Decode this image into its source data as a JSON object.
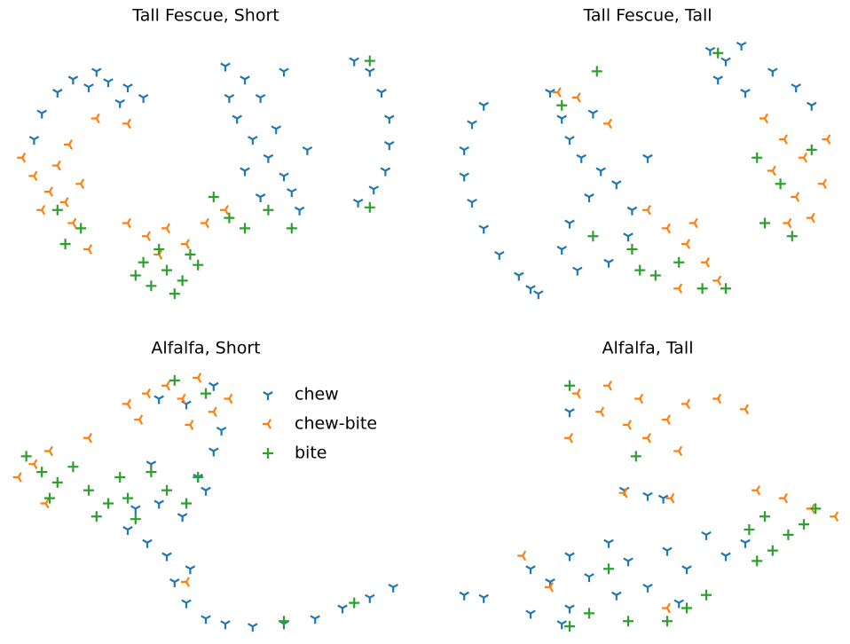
{
  "chart_data": [
    {
      "type": "scatter",
      "title": "Tall Fescue, Short",
      "xlim": [
        0,
        100
      ],
      "ylim": [
        0,
        100
      ],
      "series": [
        {
          "name": "chew",
          "color": "#1f77b4",
          "marker": "tri_down",
          "x": [
            8,
            12,
            16,
            20,
            25,
            30,
            34,
            22,
            6,
            28,
            55,
            60,
            64,
            58,
            62,
            66,
            70,
            72,
            68,
            60,
            64,
            74,
            56,
            70,
            76,
            88,
            92,
            95,
            97,
            97,
            96,
            93,
            89
          ],
          "values": [
            72,
            80,
            85,
            82,
            84,
            82,
            78,
            88,
            62,
            76,
            90,
            85,
            78,
            70,
            62,
            55,
            48,
            42,
            66,
            50,
            40,
            35,
            78,
            88,
            58,
            92,
            88,
            80,
            70,
            60,
            50,
            43,
            38
          ]
        },
        {
          "name": "chew-bite",
          "color": "#ff7f0e",
          "marker": "tri_left",
          "x": [
            3,
            6,
            10,
            14,
            16,
            12,
            18,
            15,
            20,
            8,
            30,
            35,
            40,
            45,
            50,
            38,
            55,
            22,
            30
          ],
          "values": [
            55,
            48,
            42,
            38,
            30,
            52,
            45,
            60,
            20,
            35,
            30,
            25,
            28,
            22,
            30,
            18,
            35,
            70,
            68
          ]
        },
        {
          "name": "bite",
          "color": "#2ca02c",
          "marker": "plus",
          "x": [
            32,
            36,
            40,
            44,
            48,
            38,
            42,
            46,
            34,
            52,
            56,
            66,
            72,
            60,
            92,
            92,
            14,
            18,
            12
          ],
          "values": [
            10,
            6,
            12,
            8,
            14,
            20,
            3,
            18,
            15,
            40,
            32,
            35,
            28,
            28,
            92,
            36,
            22,
            28,
            35
          ]
        }
      ]
    },
    {
      "type": "scatter",
      "title": "Tall Fescue, Tall",
      "xlim": [
        0,
        100
      ],
      "ylim": [
        0,
        100
      ],
      "series": [
        {
          "name": "chew",
          "color": "#1f77b4",
          "marker": "tri_down",
          "x": [
            8,
            5,
            3,
            3,
            5,
            8,
            12,
            17,
            20,
            22,
            25,
            28,
            30,
            33,
            38,
            42,
            35,
            30,
            28,
            32,
            40,
            45,
            50,
            46,
            36,
            66,
            70,
            68,
            75,
            82,
            88,
            92,
            74
          ],
          "values": [
            75,
            68,
            58,
            48,
            38,
            28,
            18,
            10,
            5,
            3,
            80,
            70,
            62,
            55,
            50,
            45,
            40,
            30,
            20,
            12,
            15,
            25,
            55,
            35,
            72,
            96,
            92,
            85,
            80,
            88,
            82,
            75,
            98
          ]
        },
        {
          "name": "chew-bite",
          "color": "#ff7f0e",
          "marker": "tri_left",
          "x": [
            80,
            85,
            90,
            95,
            88,
            82,
            92,
            86,
            96,
            50,
            55,
            60,
            65,
            68,
            58,
            62,
            27,
            32,
            40
          ],
          "values": [
            70,
            62,
            55,
            45,
            40,
            50,
            32,
            30,
            62,
            35,
            28,
            22,
            15,
            8,
            5,
            30,
            80,
            78,
            68
          ]
        },
        {
          "name": "bite",
          "color": "#2ca02c",
          "marker": "plus",
          "x": [
            78,
            84,
            92,
            80,
            87,
            46,
            52,
            58,
            64,
            48,
            70,
            68,
            37,
            28,
            36
          ],
          "values": [
            55,
            45,
            58,
            30,
            25,
            20,
            10,
            15,
            5,
            12,
            5,
            95,
            88,
            75,
            25
          ]
        }
      ]
    },
    {
      "type": "scatter",
      "title": "Alfalfa, Short",
      "xlim": [
        0,
        100
      ],
      "ylim": [
        0,
        100
      ],
      "legend": "upper right",
      "series": [
        {
          "name": "chew",
          "color": "#1f77b4",
          "marker": "tri_down",
          "x": [
            45,
            50,
            55,
            62,
            70,
            78,
            85,
            92,
            98,
            30,
            35,
            40,
            44,
            46,
            38,
            50,
            52,
            48,
            42,
            36,
            32,
            54,
            38,
            45,
            52
          ],
          "values": [
            12,
            6,
            4,
            3,
            4,
            6,
            10,
            14,
            18,
            40,
            35,
            30,
            45,
            25,
            50,
            55,
            70,
            60,
            20,
            65,
            48,
            78,
            90,
            88,
            95
          ]
        },
        {
          "name": "chew-bite",
          "color": "#ff7f0e",
          "marker": "tri_left",
          "x": [
            30,
            35,
            40,
            44,
            48,
            52,
            56,
            33,
            46,
            2,
            6,
            9,
            10,
            20,
            45
          ],
          "values": [
            88,
            92,
            95,
            90,
            98,
            85,
            90,
            82,
            80,
            60,
            65,
            50,
            70,
            75,
            20
          ]
        },
        {
          "name": "bite",
          "color": "#2ca02c",
          "marker": "plus",
          "x": [
            4,
            8,
            12,
            16,
            20,
            25,
            28,
            22,
            10,
            32,
            40,
            45,
            48,
            36,
            30,
            42,
            50,
            70,
            88
          ],
          "values": [
            68,
            62,
            58,
            64,
            55,
            50,
            60,
            45,
            52,
            44,
            55,
            50,
            60,
            62,
            52,
            97,
            92,
            5,
            12
          ]
        }
      ]
    },
    {
      "type": "scatter",
      "title": "Alfalfa, Tall",
      "xlim": [
        0,
        100
      ],
      "ylim": [
        0,
        100
      ],
      "series": [
        {
          "name": "chew",
          "color": "#1f77b4",
          "marker": "tri_down",
          "x": [
            20,
            25,
            30,
            35,
            40,
            45,
            50,
            55,
            60,
            65,
            70,
            75,
            30,
            20,
            28,
            42,
            58,
            3,
            8,
            44,
            50,
            54,
            30
          ],
          "values": [
            25,
            20,
            30,
            22,
            35,
            28,
            18,
            32,
            25,
            38,
            30,
            35,
            10,
            8,
            4,
            15,
            12,
            15,
            14,
            55,
            53,
            52,
            85
          ]
        },
        {
          "name": "chew-bite",
          "color": "#ff7f0e",
          "marker": "tri_left",
          "x": [
            32,
            38,
            45,
            50,
            55,
            60,
            68,
            75,
            40,
            30,
            48,
            58,
            78,
            85,
            92,
            98,
            44,
            56,
            25,
            55,
            18
          ],
          "values": [
            92,
            85,
            80,
            75,
            82,
            88,
            90,
            86,
            95,
            75,
            90,
            70,
            55,
            52,
            48,
            45,
            54,
            52,
            18,
            10,
            30
          ]
        },
        {
          "name": "bite",
          "color": "#2ca02c",
          "marker": "plus",
          "x": [
            76,
            80,
            86,
            90,
            82,
            93,
            78,
            35,
            45,
            55,
            60,
            65,
            30,
            40,
            30,
            47
          ],
          "values": [
            40,
            45,
            38,
            42,
            32,
            48,
            28,
            8,
            5,
            5,
            10,
            15,
            3,
            25,
            95,
            68
          ]
        }
      ]
    }
  ]
}
